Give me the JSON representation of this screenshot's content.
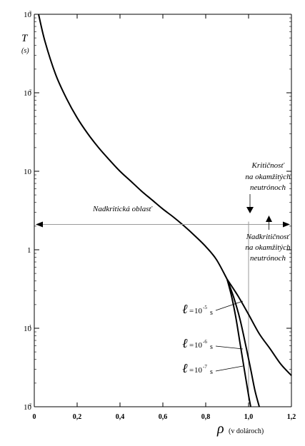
{
  "chart_data": {
    "type": "line",
    "xlabel": "ρ",
    "xlabel_unit": "(v dolároch)",
    "ylabel": "T",
    "ylabel_unit": "(s)",
    "xlim": [
      0,
      1.2
    ],
    "ylim": [
      0.01,
      1000
    ],
    "yscale": "log",
    "grid": false,
    "x_ticks": [
      {
        "value": 0,
        "label": "0"
      },
      {
        "value": 0.2,
        "label": "0,2"
      },
      {
        "value": 0.4,
        "label": "0,4"
      },
      {
        "value": 0.6,
        "label": "0,6"
      },
      {
        "value": 0.8,
        "label": "0,8"
      },
      {
        "value": 1.0,
        "label": "1,0"
      },
      {
        "value": 1.2,
        "label": "1,2"
      }
    ],
    "y_ticks": [
      {
        "value": 1000,
        "base": "10",
        "exp": "3"
      },
      {
        "value": 100,
        "base": "10",
        "exp": "2"
      },
      {
        "value": 10,
        "base": "10",
        "exp": ""
      },
      {
        "value": 1,
        "base": "1",
        "exp": ""
      },
      {
        "value": 0.1,
        "base": "10",
        "exp": "-1"
      },
      {
        "value": 0.01,
        "base": "10",
        "exp": "-2"
      }
    ],
    "main_curve": {
      "x": [
        0.02,
        0.05,
        0.1,
        0.15,
        0.2,
        0.25,
        0.3,
        0.35,
        0.4,
        0.45,
        0.5,
        0.55,
        0.6,
        0.65,
        0.7,
        0.75,
        0.8,
        0.85,
        0.9
      ],
      "y": [
        1000,
        450,
        170,
        85,
        48,
        30,
        20,
        14,
        10,
        7.5,
        5.6,
        4.3,
        3.3,
        2.6,
        2.0,
        1.5,
        1.1,
        0.75,
        0.42
      ]
    },
    "series": [
      {
        "name": "10",
        "exp": "-5",
        "unit": "s",
        "x": [
          0.9,
          0.95,
          1.0,
          1.05,
          1.1,
          1.15,
          1.2
        ],
        "y": [
          0.42,
          0.26,
          0.15,
          0.085,
          0.055,
          0.035,
          0.025
        ]
      },
      {
        "name": "10",
        "exp": "-6",
        "unit": "s",
        "x": [
          0.9,
          0.93,
          0.96,
          0.99,
          1.01,
          1.03,
          1.05
        ],
        "y": [
          0.42,
          0.25,
          0.13,
          0.055,
          0.03,
          0.016,
          0.01
        ]
      },
      {
        "name": "10",
        "exp": "-7",
        "unit": "s",
        "x": [
          0.9,
          0.92,
          0.94,
          0.96,
          0.98,
          1.0,
          1.01
        ],
        "y": [
          0.42,
          0.26,
          0.14,
          0.065,
          0.03,
          0.014,
          0.01
        ]
      }
    ],
    "annotations": {
      "supercritical_region": "Nadkritická oblasť",
      "prompt_criticality": [
        "Kritičnosť",
        "na okamžitých",
        "neutrónoch"
      ],
      "prompt_supercriticality": [
        "Nadkritičnosť",
        "na okamžitých",
        "neutrónoch"
      ],
      "ell_symbol": "ℓ",
      "equals": "=",
      "criticality_level": 1.0,
      "arrow_level_T": 2.1
    }
  }
}
